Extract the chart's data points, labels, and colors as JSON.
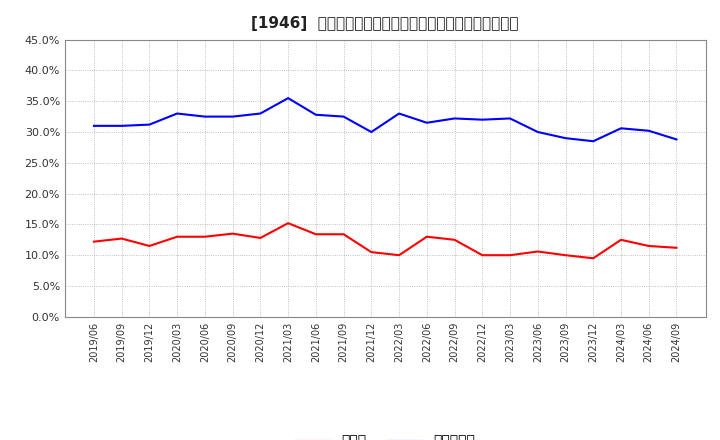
{
  "title": "[1946]  現預金、有利子負債の総資産に対する比率の推移",
  "x_labels": [
    "2019/06",
    "2019/09",
    "2019/12",
    "2020/03",
    "2020/06",
    "2020/09",
    "2020/12",
    "2021/03",
    "2021/06",
    "2021/09",
    "2021/12",
    "2022/03",
    "2022/06",
    "2022/09",
    "2022/12",
    "2023/03",
    "2023/06",
    "2023/09",
    "2023/12",
    "2024/03",
    "2024/06",
    "2024/09"
  ],
  "cash": [
    0.122,
    0.127,
    0.115,
    0.13,
    0.13,
    0.135,
    0.128,
    0.152,
    0.134,
    0.134,
    0.105,
    0.1,
    0.13,
    0.125,
    0.1,
    0.1,
    0.106,
    0.1,
    0.095,
    0.125,
    0.115,
    0.112
  ],
  "debt": [
    0.31,
    0.31,
    0.312,
    0.33,
    0.325,
    0.325,
    0.33,
    0.355,
    0.328,
    0.325,
    0.3,
    0.33,
    0.315,
    0.322,
    0.32,
    0.322,
    0.3,
    0.29,
    0.285,
    0.306,
    0.302,
    0.288
  ],
  "cash_color": "#ff0000",
  "debt_color": "#0000ff",
  "bg_color": "#ffffff",
  "plot_bg_color": "#ffffff",
  "grid_color": "#999999",
  "title_fontsize": 11,
  "legend_cash": "現預金",
  "legend_debt": "有利子負債",
  "ylim": [
    0.0,
    0.45
  ],
  "yticks": [
    0.0,
    0.05,
    0.1,
    0.15,
    0.2,
    0.25,
    0.3,
    0.35,
    0.4,
    0.45
  ]
}
